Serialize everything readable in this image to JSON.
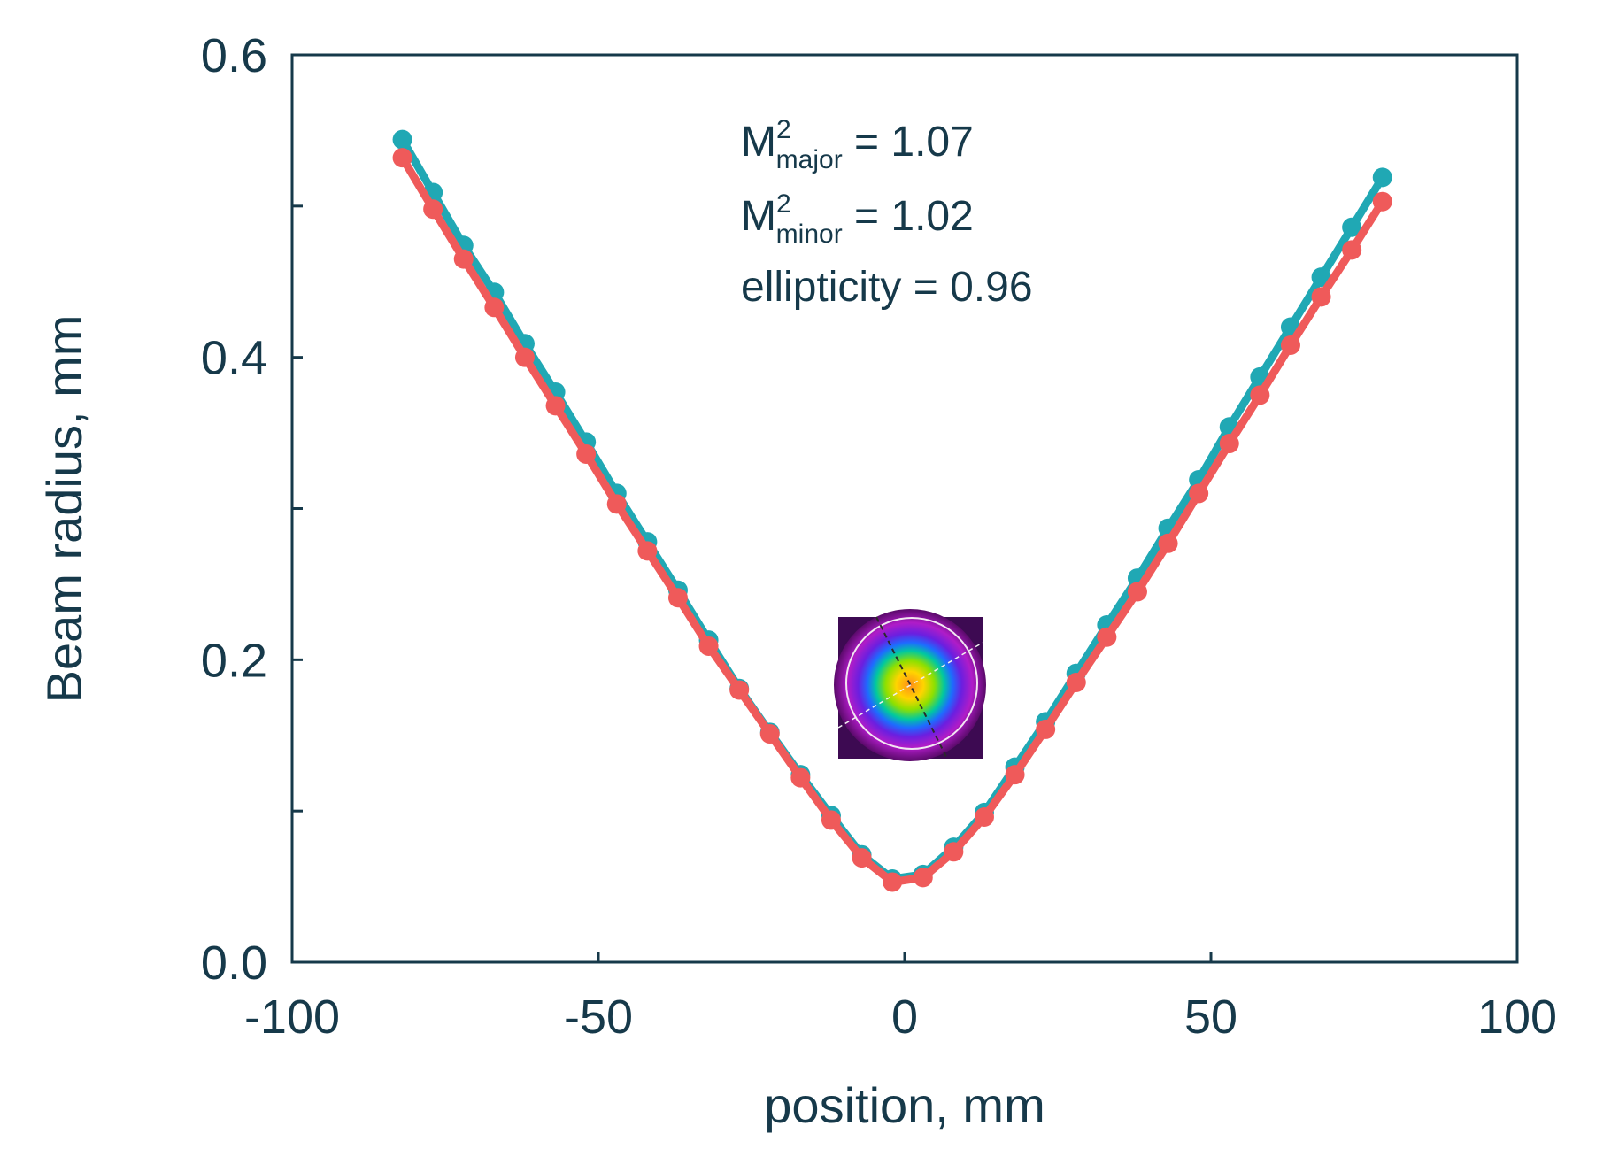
{
  "chart_data": {
    "type": "line",
    "title": "",
    "xlabel": "position, mm",
    "ylabel": "Beam radius, mm",
    "xlim": [
      -100,
      100
    ],
    "ylim": [
      0,
      0.6
    ],
    "xticks": [
      -100,
      -50,
      0,
      50,
      100
    ],
    "xtick_labels": [
      "-100",
      "-50",
      "0",
      "50",
      "100"
    ],
    "yticks": [
      0.0,
      0.2,
      0.4,
      0.6
    ],
    "ytick_labels": [
      "0.0",
      "0.2",
      "0.4",
      "0.6"
    ],
    "y_minor_ticks": [
      0.1,
      0.3,
      0.5
    ],
    "grid": false,
    "legend": "none",
    "annotations": [
      {
        "base": "M",
        "sup": "2",
        "sub": "major",
        "rest": " = 1.07"
      },
      {
        "base": "M",
        "sup": "2",
        "sub": "minor",
        "rest": " = 1.02"
      },
      {
        "base": "ellipticity = 0.96",
        "sup": "",
        "sub": "",
        "rest": ""
      }
    ],
    "inset": "beam-profile-image",
    "series": [
      {
        "color": "#20a8b4",
        "x": [
          -82,
          -77,
          -72,
          -67,
          -62,
          -57,
          -52,
          -47,
          -42,
          -37,
          -32,
          -27,
          -22,
          -17,
          -12,
          -7,
          -2,
          3,
          8,
          13,
          18,
          23,
          28,
          33,
          38,
          43,
          48,
          53,
          58,
          63,
          68,
          73,
          78
        ],
        "y": [
          0.544,
          0.509,
          0.474,
          0.443,
          0.409,
          0.377,
          0.344,
          0.31,
          0.278,
          0.246,
          0.213,
          0.181,
          0.152,
          0.124,
          0.097,
          0.071,
          0.055,
          0.058,
          0.076,
          0.099,
          0.129,
          0.159,
          0.191,
          0.223,
          0.254,
          0.287,
          0.319,
          0.354,
          0.387,
          0.42,
          0.453,
          0.486,
          0.519
        ]
      },
      {
        "color": "#ef5a5a",
        "x": [
          -82,
          -77,
          -72,
          -67,
          -62,
          -57,
          -52,
          -47,
          -42,
          -37,
          -32,
          -27,
          -22,
          -17,
          -12,
          -7,
          -2,
          3,
          8,
          13,
          18,
          23,
          28,
          33,
          38,
          43,
          48,
          53,
          58,
          63,
          68,
          73,
          78
        ],
        "y": [
          0.532,
          0.498,
          0.465,
          0.433,
          0.4,
          0.368,
          0.336,
          0.303,
          0.272,
          0.241,
          0.209,
          0.18,
          0.151,
          0.122,
          0.094,
          0.069,
          0.053,
          0.056,
          0.073,
          0.096,
          0.124,
          0.154,
          0.185,
          0.215,
          0.245,
          0.277,
          0.31,
          0.343,
          0.375,
          0.408,
          0.44,
          0.471,
          0.503
        ]
      }
    ]
  }
}
